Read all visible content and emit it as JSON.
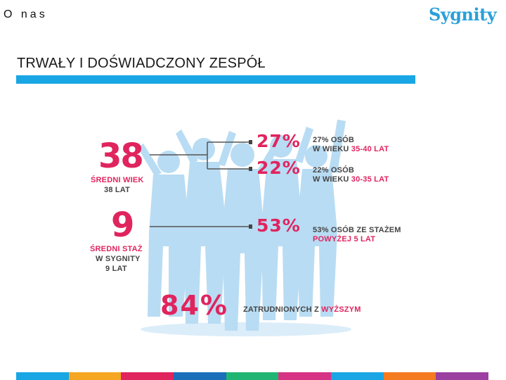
{
  "header": {
    "title": "O nas",
    "logo": "Sygnity"
  },
  "section": {
    "title": "TRWAŁY I DOŚWIADCZONY ZESPÓŁ"
  },
  "infographic": {
    "avg_age": {
      "value": "38",
      "label_line1": "ŚREDNI WIEK",
      "label_line2": "38 LAT"
    },
    "age_group_1": {
      "percent": "27%",
      "line1": "27% OSÓB",
      "line2_prefix": "W WIEKU ",
      "line2_highlight": "35-40 LAT"
    },
    "age_group_2": {
      "percent": "22%",
      "line1": "22% OSÓB",
      "line2_prefix": "W WIEKU ",
      "line2_highlight": "30-35 LAT"
    },
    "avg_tenure": {
      "value": "9",
      "label_line1": "ŚREDNI STAŻ",
      "label_line2": "W SYGNITY",
      "label_line3": "9 LAT"
    },
    "tenure_group": {
      "percent": "53%",
      "line1": "53% OSÓB ZE STAŻEM",
      "line2": "POWYŻEJ 5 LAT"
    },
    "education": {
      "percent": "84%",
      "label_prefix": "ZATRUDNIONYCH Z ",
      "label_highlight": "WYŻSZYM"
    }
  },
  "colors": {
    "accent_blue": "#1aa6e4",
    "accent_pink": "#e0245e",
    "footer": [
      "#1aa6e4",
      "#f5a623",
      "#e0245e",
      "#1b6fb8",
      "#21b573",
      "#d63384",
      "#1aa6e4",
      "#f47b20",
      "#9b3fa0"
    ]
  }
}
